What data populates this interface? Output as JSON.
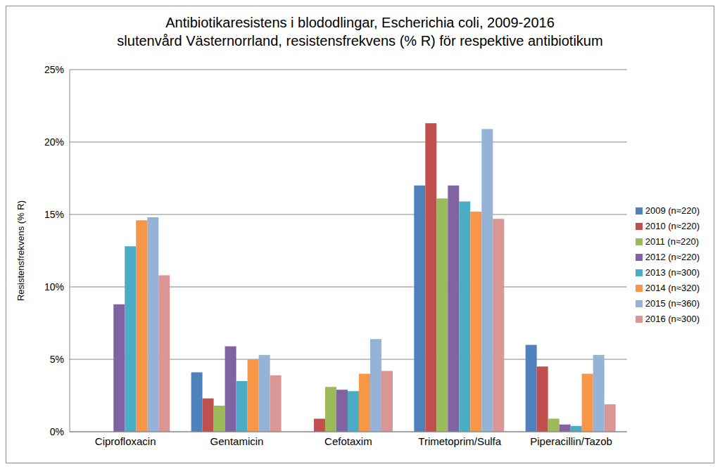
{
  "chart_data": {
    "type": "bar",
    "title": "Antibiotikaresistens i blododlingar, Escherichia coli, 2009-2016",
    "subtitle": "slutenvård Västernorrland, resistensfrekvens (% R) för respektive antibiotikum",
    "y_label": "Resistensfrekvens (% R)",
    "categories": [
      "Ciprofloxacin",
      "Gentamicin",
      "Cefotaxim",
      "Trimetoprim/Sulfa",
      "Piperacillin/Tazob"
    ],
    "series": [
      {
        "name": "2009 (n≈220)",
        "color": "#4f81bd",
        "values": [
          null,
          4.1,
          null,
          17.0,
          6.0
        ]
      },
      {
        "name": "2010 (n≈220)",
        "color": "#c0504d",
        "values": [
          null,
          2.3,
          0.9,
          21.3,
          4.5
        ]
      },
      {
        "name": "2011 (n≈220)",
        "color": "#9bbb59",
        "values": [
          null,
          1.8,
          3.1,
          16.1,
          0.9
        ]
      },
      {
        "name": "2012 (n≈220)",
        "color": "#8064a2",
        "values": [
          8.8,
          5.9,
          2.9,
          17.0,
          0.5
        ]
      },
      {
        "name": "2013 (n≈300)",
        "color": "#4bacc6",
        "values": [
          12.8,
          3.5,
          2.8,
          15.9,
          0.4
        ]
      },
      {
        "name": "2014 (n≈320)",
        "color": "#f79646",
        "values": [
          14.6,
          5.0,
          4.0,
          15.2,
          4.0
        ]
      },
      {
        "name": "2015 (n≈360)",
        "color": "#95b3d7",
        "values": [
          14.8,
          5.3,
          6.4,
          20.9,
          5.3
        ]
      },
      {
        "name": "2016 (n≈300)",
        "color": "#d99694",
        "values": [
          10.8,
          3.9,
          4.2,
          14.7,
          1.9
        ]
      }
    ],
    "ylim": [
      0,
      25
    ],
    "yticks": [
      {
        "value": 0,
        "label": "0%"
      },
      {
        "value": 5,
        "label": "5%"
      },
      {
        "value": 10,
        "label": "10%"
      },
      {
        "value": 15,
        "label": "15%"
      },
      {
        "value": 20,
        "label": "20%"
      },
      {
        "value": 25,
        "label": "25%"
      }
    ],
    "grid": true,
    "legend": "right"
  }
}
